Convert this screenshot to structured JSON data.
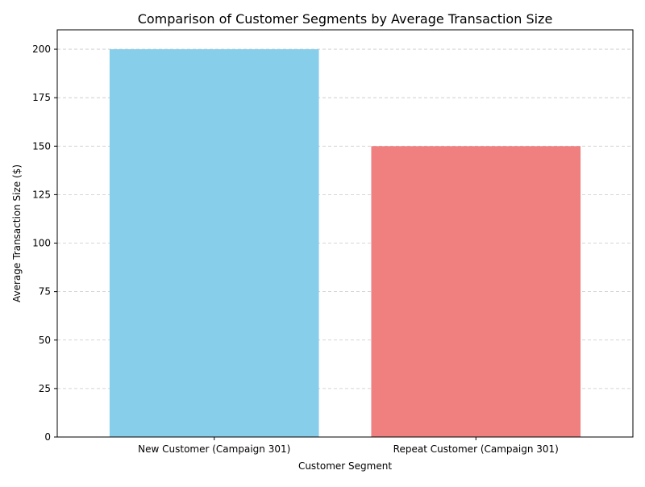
{
  "chart_data": {
    "type": "bar",
    "title": "Comparison of Customer Segments by Average Transaction Size",
    "xlabel": "Customer Segment",
    "ylabel": "Average Transaction Size ($)",
    "categories": [
      "New Customer (Campaign 301)",
      "Repeat Customer (Campaign 301)"
    ],
    "values": [
      200,
      150
    ],
    "colors": [
      "#87ceeb",
      "#f08080"
    ],
    "ylim": [
      0,
      210
    ],
    "yticks": [
      0,
      25,
      50,
      75,
      100,
      125,
      150,
      175,
      200
    ],
    "grid": "y-dashed"
  }
}
